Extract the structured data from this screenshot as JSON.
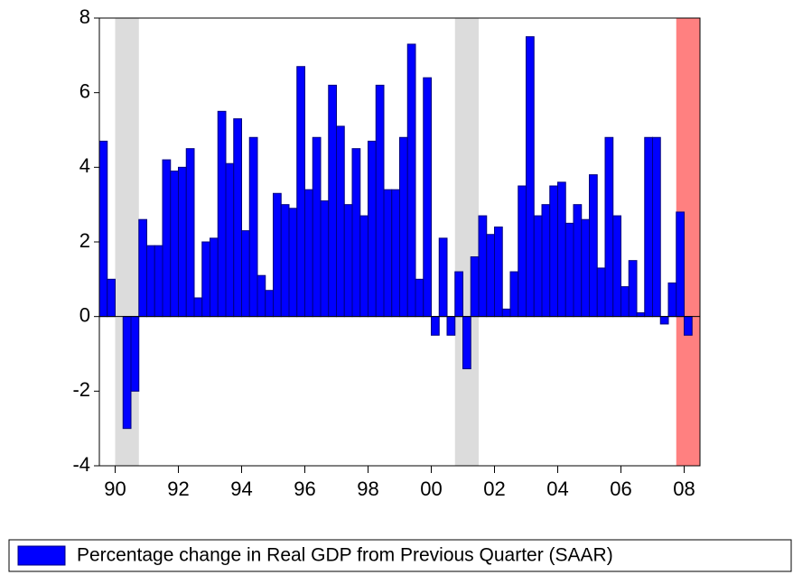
{
  "chart_data": {
    "type": "bar",
    "legend_label": "Percentage change in Real GDP from Previous Quarter (SAAR)",
    "color": "#0000ff",
    "x": [
      1990,
      1990.25,
      1990.5,
      1990.75,
      1991,
      1991.25,
      1991.5,
      1991.75,
      1992,
      1992.25,
      1992.5,
      1992.75,
      1993,
      1993.25,
      1993.5,
      1993.75,
      1994,
      1994.25,
      1994.5,
      1994.75,
      1995,
      1995.25,
      1995.5,
      1995.75,
      1996,
      1996.25,
      1996.5,
      1996.75,
      1997,
      1997.25,
      1997.5,
      1997.75,
      1998,
      1998.25,
      1998.5,
      1998.75,
      1999,
      1999.25,
      1999.5,
      1999.75,
      2000,
      2000.25,
      2000.5,
      2000.75,
      2001,
      2001.25,
      2001.5,
      2001.75,
      2002,
      2002.25,
      2002.5,
      2002.75,
      2003,
      2003.25,
      2003.5,
      2003.75,
      2004,
      2004.25,
      2004.5,
      2004.75,
      2005,
      2005.25,
      2005.5,
      2005.75,
      2006,
      2006.25,
      2006.5,
      2006.75,
      2007,
      2007.25,
      2007.5,
      2007.75,
      2008,
      2008.25,
      2008.5
    ],
    "values": [
      4.7,
      1.0,
      0.0,
      -3.0,
      -2.0,
      2.6,
      1.9,
      1.9,
      4.2,
      3.9,
      4.0,
      4.5,
      0.5,
      2.0,
      2.1,
      5.5,
      4.1,
      5.3,
      2.3,
      4.8,
      1.1,
      0.7,
      3.3,
      3.0,
      2.9,
      6.7,
      3.4,
      4.8,
      3.1,
      6.2,
      5.1,
      3.0,
      4.5,
      2.7,
      4.7,
      6.2,
      3.4,
      3.4,
      4.8,
      7.3,
      1.0,
      6.4,
      -0.5,
      2.1,
      -0.5,
      1.2,
      -1.4,
      1.6,
      2.7,
      2.2,
      2.4,
      0.2,
      1.2,
      3.5,
      7.5,
      2.7,
      3.0,
      3.5,
      3.6,
      2.5,
      3.0,
      2.6,
      3.8,
      1.3,
      4.8,
      2.7,
      0.8,
      1.5,
      0.1,
      4.8,
      4.8,
      -0.2,
      0.9,
      2.8,
      -0.5
    ],
    "bar_width": 0.25,
    "xlim": [
      1990,
      2009
    ],
    "xticks": [
      {
        "value": 1990.5,
        "label": "90"
      },
      {
        "value": 1992.5,
        "label": "92"
      },
      {
        "value": 1994.5,
        "label": "94"
      },
      {
        "value": 1996.5,
        "label": "96"
      },
      {
        "value": 1998.5,
        "label": "98"
      },
      {
        "value": 2000.5,
        "label": "00"
      },
      {
        "value": 2002.5,
        "label": "02"
      },
      {
        "value": 2004.5,
        "label": "04"
      },
      {
        "value": 2006.5,
        "label": "06"
      },
      {
        "value": 2008.5,
        "label": "08"
      }
    ],
    "ylim": [
      -4,
      8
    ],
    "yticks": [
      -4,
      -2,
      0,
      2,
      4,
      6,
      8
    ],
    "grid": false,
    "shaded_regions": [
      {
        "start": 1990.5,
        "end": 1991.25,
        "color": "#dcdcdc"
      },
      {
        "start": 2001.25,
        "end": 2002.0,
        "color": "#dcdcdc"
      },
      {
        "start": 2008.25,
        "end": 2009,
        "color": "#ff8080"
      }
    ]
  }
}
